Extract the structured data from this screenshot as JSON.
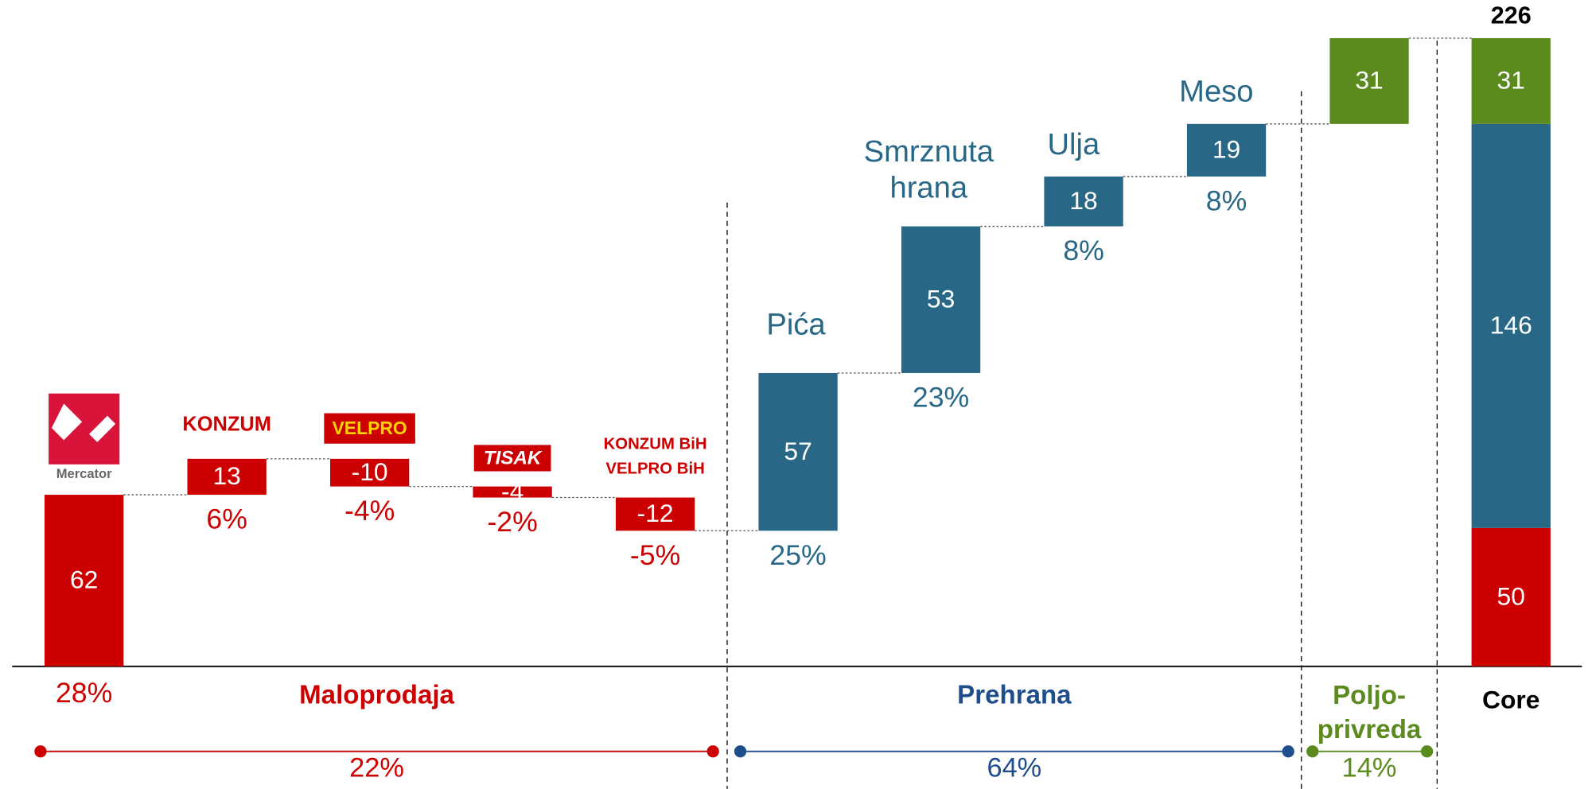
{
  "chart_data": {
    "type": "waterfall",
    "categories": [
      "Mercator",
      "KONZUM",
      "VELPRO",
      "TISAK",
      null,
      "Pića",
      "Smrznuta hrana",
      "Ulja",
      "Meso",
      null
    ],
    "logo_stack": [
      "KONZUM BiH",
      "VELPRO BiH"
    ],
    "values": [
      62,
      13,
      -10,
      -4,
      -12,
      57,
      53,
      18,
      19,
      31
    ],
    "share_labels": [
      "28%",
      "6%",
      "-4%",
      "-2%",
      "-5%",
      "25%",
      "23%",
      "8%",
      "8%",
      null
    ],
    "colors": [
      "#cc0000",
      "#cc0000",
      "#cc0000",
      "#cc0000",
      "#cc0000",
      "#286886",
      "#286886",
      "#286886",
      "#286886",
      "#5b8a1e"
    ],
    "groups": [
      {
        "name": "Maloprodaja",
        "share": "22%",
        "color": "#cc0000"
      },
      {
        "name": "Prehrana",
        "share": "64%",
        "color": "#1f4e8c"
      },
      {
        "name": "Poljo-privreda",
        "share": "14%",
        "color": "#5b8a1e"
      }
    ],
    "total": {
      "label": "Core",
      "value": 226,
      "segments": [
        50,
        146,
        31
      ],
      "colors": [
        "#cc0000",
        "#286886",
        "#5b8a1e"
      ]
    },
    "ylim": [
      0,
      240
    ]
  }
}
